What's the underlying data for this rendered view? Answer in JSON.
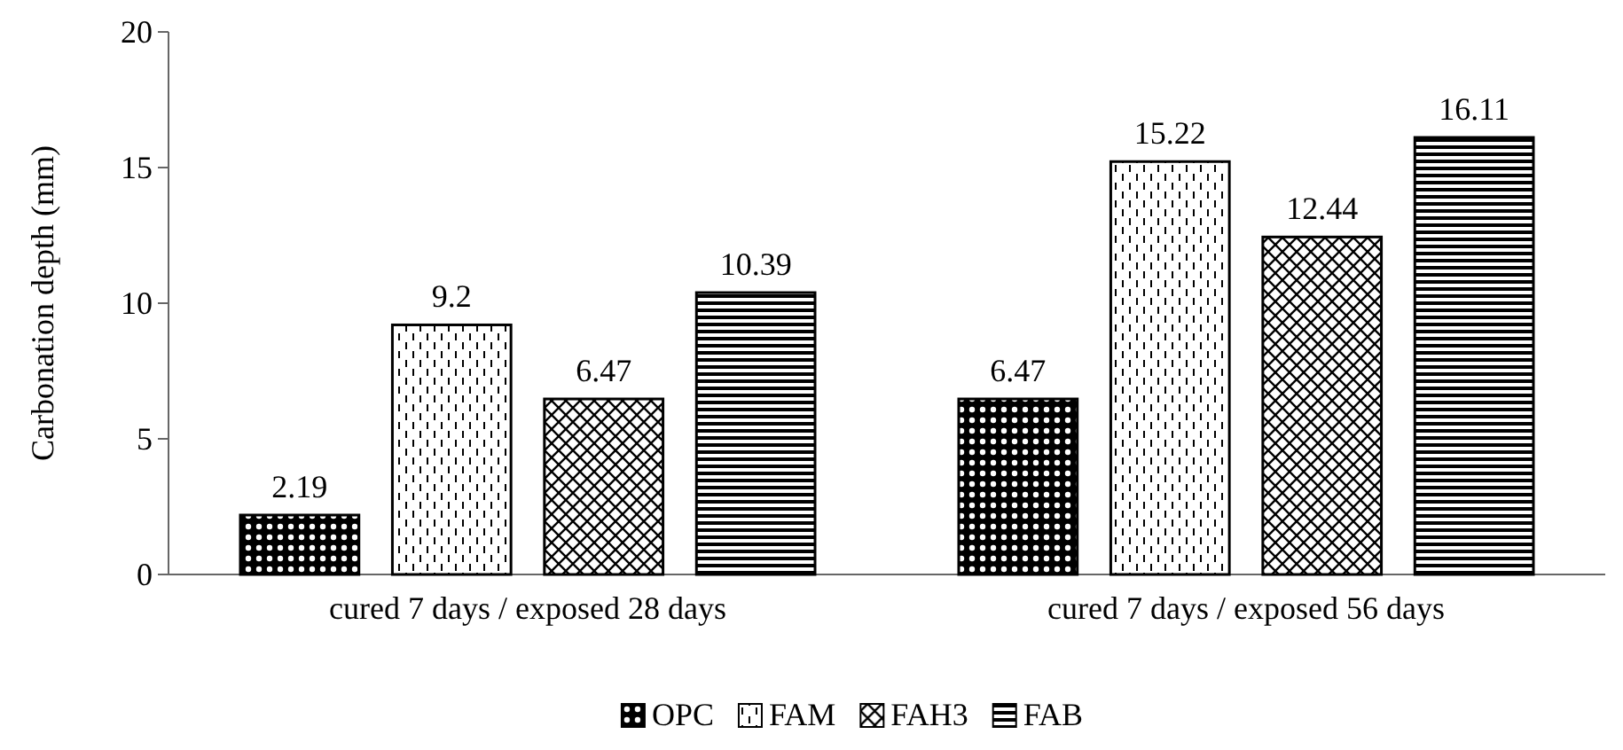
{
  "chart_data": {
    "type": "bar",
    "ylabel": "Carbonation depth (mm)",
    "categories": [
      "cured 7 days / exposed 28 days",
      "cured 7 days / exposed 56 days"
    ],
    "series": [
      {
        "name": "OPC",
        "color": "#000000",
        "values": [
          2.19,
          6.47
        ]
      },
      {
        "name": "FAM",
        "color": "#000000",
        "values": [
          9.2,
          15.22
        ]
      },
      {
        "name": "FAH3",
        "color": "#000000",
        "values": [
          6.47,
          12.44
        ]
      },
      {
        "name": "FAB",
        "color": "#000000",
        "values": [
          10.39,
          16.11
        ]
      }
    ],
    "ylim": [
      0,
      20
    ],
    "yticks": [
      0,
      5,
      10,
      15,
      20
    ],
    "grid": false,
    "legend": "bottom",
    "data_labels": true
  }
}
